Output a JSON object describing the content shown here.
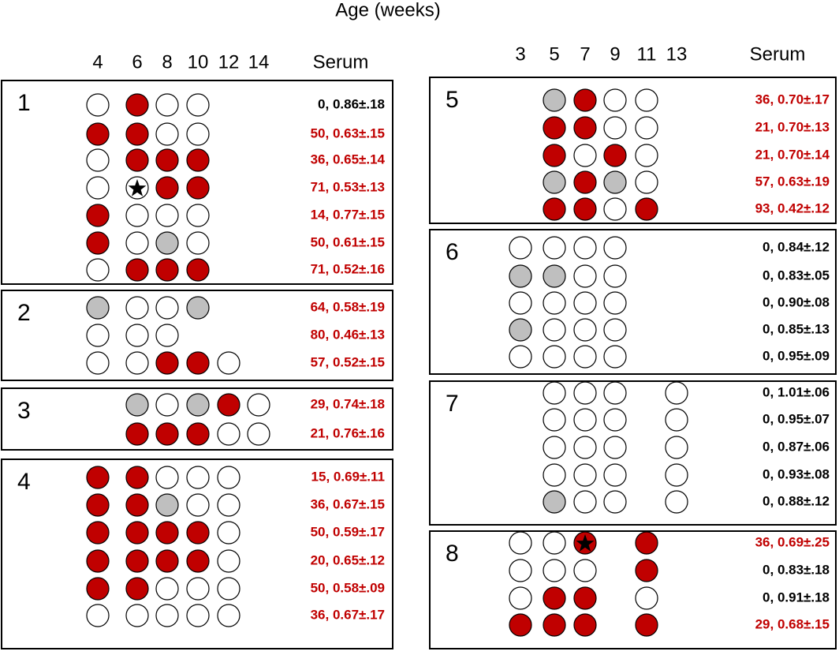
{
  "title": "Age (weeks)",
  "left": {
    "columns": [
      "4",
      "6",
      "8",
      "10",
      "12",
      "14"
    ],
    "serum_header": "Serum",
    "groups": [
      {
        "label": "1",
        "rows": [
          {
            "cells": [
              "white",
              "red",
              "white",
              "white"
            ],
            "serum": "0, 0.86±.18",
            "color": "#000000"
          },
          {
            "cells": [
              "red",
              "red",
              "white",
              "white"
            ],
            "serum": "50, 0.63±.15",
            "color": "#c00000"
          },
          {
            "cells": [
              "white",
              "red",
              "red",
              "red"
            ],
            "serum": "36, 0.65±.14",
            "color": "#c00000"
          },
          {
            "cells": [
              "white",
              "white-star",
              "red",
              "red"
            ],
            "serum": "71, 0.53±.13",
            "color": "#c00000"
          },
          {
            "cells": [
              "red",
              "white",
              "white",
              "white"
            ],
            "serum": "14, 0.77±.15",
            "color": "#c00000"
          },
          {
            "cells": [
              "red",
              "white",
              "gray",
              "white"
            ],
            "serum": "50, 0.61±.15",
            "color": "#c00000"
          },
          {
            "cells": [
              "white",
              "red",
              "red",
              "red"
            ],
            "serum": "71, 0.52±.16",
            "color": "#c00000"
          }
        ]
      },
      {
        "label": "2",
        "rows": [
          {
            "cells": [
              "gray",
              "white",
              "white",
              "gray"
            ],
            "serum": "64, 0.58±.19",
            "color": "#c00000"
          },
          {
            "cells": [
              "white",
              "white",
              "white"
            ],
            "serum": "80, 0.46±.13",
            "color": "#c00000"
          },
          {
            "cells": [
              "white",
              "white",
              "red",
              "red",
              "white"
            ],
            "serum": "57, 0.52±.15",
            "color": "#c00000"
          }
        ]
      },
      {
        "label": "3",
        "rows": [
          {
            "cells": [
              null,
              "gray",
              "white",
              "gray",
              "red",
              "white"
            ],
            "serum": "29, 0.74±.18",
            "color": "#c00000"
          },
          {
            "cells": [
              null,
              "red",
              "red",
              "red",
              "white",
              "white"
            ],
            "serum": "21, 0.76±.16",
            "color": "#c00000"
          }
        ]
      },
      {
        "label": "4",
        "rows": [
          {
            "cells": [
              "red",
              "red",
              "white",
              "white",
              "white"
            ],
            "serum": "15, 0.69±.11",
            "color": "#c00000"
          },
          {
            "cells": [
              "red",
              "red",
              "gray",
              "white",
              "white"
            ],
            "serum": "36, 0.67±.15",
            "color": "#c00000"
          },
          {
            "cells": [
              "red",
              "red",
              "red",
              "red",
              "white"
            ],
            "serum": "50, 0.59±.17",
            "color": "#c00000"
          },
          {
            "cells": [
              "red",
              "red",
              "red",
              "red",
              "white"
            ],
            "serum": "20, 0.65±.12",
            "color": "#c00000"
          },
          {
            "cells": [
              "red",
              "red",
              "white",
              "white",
              "white"
            ],
            "serum": "50, 0.58±.09",
            "color": "#c00000"
          },
          {
            "cells": [
              "white",
              "white",
              "white",
              "white",
              "white"
            ],
            "serum": "36, 0.67±.17",
            "color": "#c00000"
          }
        ]
      }
    ]
  },
  "right": {
    "columns": [
      "3",
      "5",
      "7",
      "9",
      "11",
      "13"
    ],
    "serum_header": "Serum",
    "groups": [
      {
        "label": "5",
        "rows": [
          {
            "cells": [
              null,
              "gray",
              "red",
              "white",
              "white"
            ],
            "serum": "36, 0.70±.17",
            "color": "#c00000"
          },
          {
            "cells": [
              null,
              "red",
              "red",
              "white",
              "white"
            ],
            "serum": "21, 0.70±.13",
            "color": "#c00000"
          },
          {
            "cells": [
              null,
              "red",
              "white",
              "red",
              "white"
            ],
            "serum": "21, 0.70±.14",
            "color": "#c00000"
          },
          {
            "cells": [
              null,
              "gray",
              "red",
              "gray",
              "white"
            ],
            "serum": "57, 0.63±.19",
            "color": "#c00000"
          },
          {
            "cells": [
              null,
              "red",
              "red",
              "white",
              "red"
            ],
            "serum": "93, 0.42±.12",
            "color": "#c00000"
          }
        ]
      },
      {
        "label": "6",
        "rows": [
          {
            "cells": [
              "white",
              "white",
              "white",
              "white"
            ],
            "serum": "0, 0.84±.12",
            "color": "#000000"
          },
          {
            "cells": [
              "gray",
              "gray",
              "white",
              "white"
            ],
            "serum": "0, 0.83±.05",
            "color": "#000000"
          },
          {
            "cells": [
              "white",
              "white",
              "white",
              "white"
            ],
            "serum": "0, 0.90±.08",
            "color": "#000000"
          },
          {
            "cells": [
              "gray",
              "white",
              "white",
              "white"
            ],
            "serum": "0, 0.85±.13",
            "color": "#000000"
          },
          {
            "cells": [
              "white",
              "white",
              "white",
              "white"
            ],
            "serum": "0, 0.95±.09",
            "color": "#000000"
          }
        ]
      },
      {
        "label": "7",
        "rows": [
          {
            "cells": [
              null,
              "white",
              "white",
              "white",
              null,
              "white"
            ],
            "serum": "0, 1.01±.06",
            "color": "#000000"
          },
          {
            "cells": [
              null,
              "white",
              "white",
              "white",
              null,
              "white"
            ],
            "serum": "0, 0.95±.07",
            "color": "#000000"
          },
          {
            "cells": [
              null,
              "white",
              "white",
              "white",
              null,
              "white"
            ],
            "serum": "0, 0.87±.06",
            "color": "#000000"
          },
          {
            "cells": [
              null,
              "white",
              "white",
              "white",
              null,
              "white"
            ],
            "serum": "0, 0.93±.08",
            "color": "#000000"
          },
          {
            "cells": [
              null,
              "gray",
              "white",
              "white",
              null,
              "white"
            ],
            "serum": "0, 0.88±.12",
            "color": "#000000"
          }
        ]
      },
      {
        "label": "8",
        "rows": [
          {
            "cells": [
              "white",
              "white",
              "red-star",
              null,
              "red"
            ],
            "serum": "36, 0.69±.25",
            "color": "#c00000"
          },
          {
            "cells": [
              "white",
              "white",
              "white",
              null,
              "red"
            ],
            "serum": "0, 0.83±.18",
            "color": "#000000"
          },
          {
            "cells": [
              "white",
              "red",
              "red",
              null,
              "white"
            ],
            "serum": "0, 0.91±.18",
            "color": "#000000"
          },
          {
            "cells": [
              "red",
              "red",
              "red",
              null,
              "red"
            ],
            "serum": "29, 0.68±.15",
            "color": "#c00000"
          }
        ]
      }
    ]
  }
}
